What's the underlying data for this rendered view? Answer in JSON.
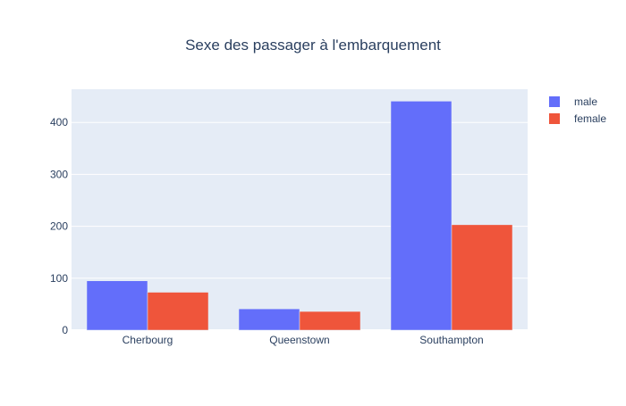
{
  "chart_data": {
    "type": "bar",
    "title": "Sexe des passager à l'embarquement",
    "xlabel": "",
    "ylabel": "",
    "categories": [
      "Cherbourg",
      "Queenstown",
      "Southampton"
    ],
    "series": [
      {
        "name": "male",
        "values": [
          95,
          41,
          441
        ],
        "color": "#636efa"
      },
      {
        "name": "female",
        "values": [
          73,
          36,
          203
        ],
        "color": "#ef553b"
      }
    ],
    "ylim": [
      0,
      464
    ],
    "yticks": [
      0,
      100,
      200,
      300,
      400
    ],
    "grid": true,
    "legend": "top-right",
    "plot_background": "#e5ecf6"
  }
}
